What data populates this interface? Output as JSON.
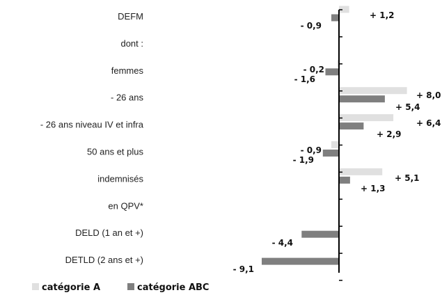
{
  "chart_data": {
    "type": "bar",
    "orientation": "horizontal",
    "categories": [
      "DEFM",
      "dont :",
      "femmes",
      "- 26 ans",
      "- 26 ans niveau IV et infra",
      "50 ans et plus",
      "indemnisés",
      "en QPV*",
      "DELD (1 an et +)",
      "DETLD (2 ans et +)"
    ],
    "series": [
      {
        "name": "catégorie A",
        "color": "#e0e0e0",
        "values": [
          1.2,
          null,
          -0.2,
          8.0,
          6.4,
          -0.9,
          5.1,
          null,
          null,
          null
        ],
        "labels": [
          "+ 1,2",
          "",
          "- 0,2",
          "+ 8,0",
          "+ 6,4",
          "- 0,9",
          "+ 5,1",
          "",
          "",
          ""
        ]
      },
      {
        "name": "catégorie ABC",
        "color": "#7f7f7f",
        "values": [
          -0.9,
          null,
          -1.6,
          5.4,
          2.9,
          -1.9,
          1.3,
          null,
          -4.4,
          -9.1
        ],
        "labels": [
          "- 0,9",
          "",
          "- 1,6",
          "+ 5,4",
          "+ 2,9",
          "- 1,9",
          "+ 1,3",
          "",
          "- 4,4",
          "- 9,1"
        ]
      }
    ],
    "legend_position": "bottom-left",
    "grid": false
  }
}
